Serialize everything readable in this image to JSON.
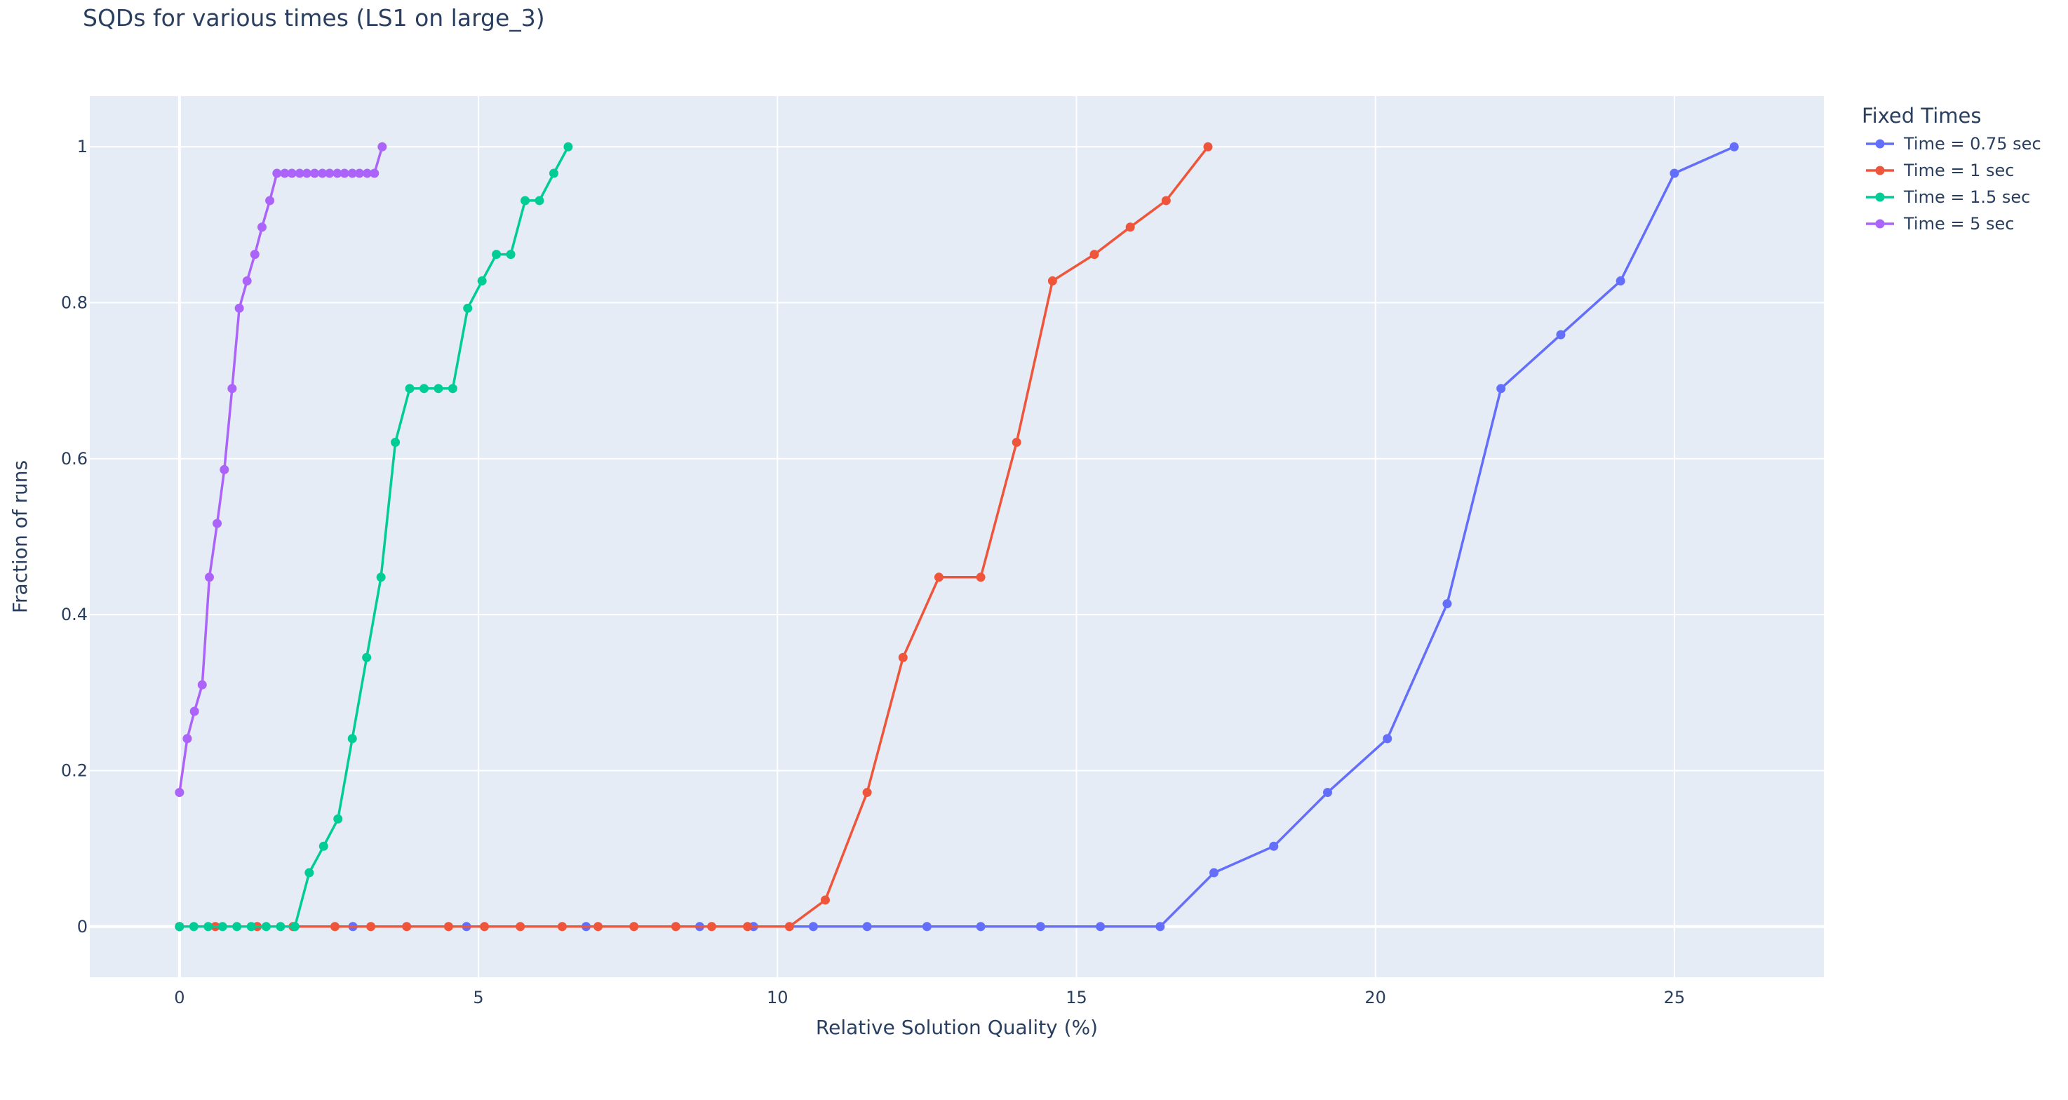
{
  "chart_data": {
    "type": "line",
    "title": "SQDs for various times (LS1 on large_3)",
    "xlabel": "Relative Solution Quality (%)",
    "ylabel": "Fraction of runs",
    "xlim": [
      -1.5,
      27.5
    ],
    "ylim": [
      -0.065,
      1.065
    ],
    "xticks": [
      0,
      5,
      10,
      15,
      20,
      25
    ],
    "yticks": [
      0,
      0.2,
      0.4,
      0.6,
      0.8,
      1
    ],
    "ytick_labels": [
      "0",
      "0.2",
      "0.4",
      "0.6",
      "0.8",
      "1"
    ],
    "grid": true,
    "legend_position": "right",
    "legend_title": "Fixed Times",
    "series": [
      {
        "name": "Time = 0.75 sec",
        "color": "#636efa",
        "x": [
          0,
          2.9,
          4.8,
          6.8,
          8.7,
          9.6,
          10.6,
          11.5,
          12.5,
          13.4,
          14.4,
          15.4,
          16.4,
          17.3,
          18.3,
          19.2,
          20.2,
          21.2,
          22.1,
          23.1,
          24.1,
          25.0,
          26.0
        ],
        "y": [
          0,
          0,
          0,
          0,
          0,
          0,
          0,
          0,
          0,
          0,
          0,
          0,
          0,
          0.069,
          0.103,
          0.172,
          0.241,
          0.414,
          0.69,
          0.759,
          0.828,
          0.966,
          1
        ]
      },
      {
        "name": "Time = 1 sec",
        "color": "#ef553b",
        "x": [
          0,
          0.6,
          1.3,
          1.9,
          2.6,
          3.2,
          3.8,
          4.5,
          5.1,
          5.7,
          6.4,
          7.0,
          7.6,
          8.3,
          8.9,
          9.5,
          10.2,
          10.8,
          11.5,
          12.1,
          12.7,
          13.4,
          14.0,
          14.6,
          15.3,
          15.9,
          16.5,
          17.2
        ],
        "y": [
          0,
          0,
          0,
          0,
          0,
          0,
          0,
          0,
          0,
          0,
          0,
          0,
          0,
          0,
          0,
          0,
          0,
          0.034,
          0.172,
          0.345,
          0.448,
          0.448,
          0.621,
          0.828,
          0.862,
          0.897,
          0.931,
          1
        ]
      },
      {
        "name": "Time = 1.5 sec",
        "color": "#00cc96",
        "x": [
          0,
          0.24,
          0.48,
          0.72,
          0.96,
          1.2,
          1.45,
          1.69,
          1.93,
          2.17,
          2.41,
          2.65,
          2.89,
          3.13,
          3.37,
          3.61,
          3.85,
          4.09,
          4.33,
          4.57,
          4.82,
          5.06,
          5.3,
          5.54,
          5.78,
          6.02,
          6.26,
          6.5
        ],
        "y": [
          0,
          0,
          0,
          0,
          0,
          0,
          0,
          0,
          0,
          0.069,
          0.103,
          0.138,
          0.241,
          0.345,
          0.448,
          0.621,
          0.69,
          0.69,
          0.69,
          0.69,
          0.793,
          0.828,
          0.862,
          0.862,
          0.931,
          0.931,
          0.966,
          1
        ]
      },
      {
        "name": "Time = 5 sec",
        "color": "#ab63fa",
        "x": [
          0,
          0.13,
          0.25,
          0.38,
          0.5,
          0.63,
          0.75,
          0.88,
          1.0,
          1.13,
          1.26,
          1.38,
          1.51,
          1.63,
          1.76,
          1.88,
          2.01,
          2.13,
          2.26,
          2.39,
          2.51,
          2.64,
          2.76,
          2.89,
          3.01,
          3.14,
          3.26,
          3.39
        ],
        "y": [
          0.172,
          0.241,
          0.276,
          0.31,
          0.448,
          0.517,
          0.586,
          0.69,
          0.793,
          0.828,
          0.862,
          0.897,
          0.931,
          0.966,
          0.966,
          0.966,
          0.966,
          0.966,
          0.966,
          0.966,
          0.966,
          0.966,
          0.966,
          0.966,
          0.966,
          0.966,
          0.966,
          1
        ]
      }
    ]
  }
}
